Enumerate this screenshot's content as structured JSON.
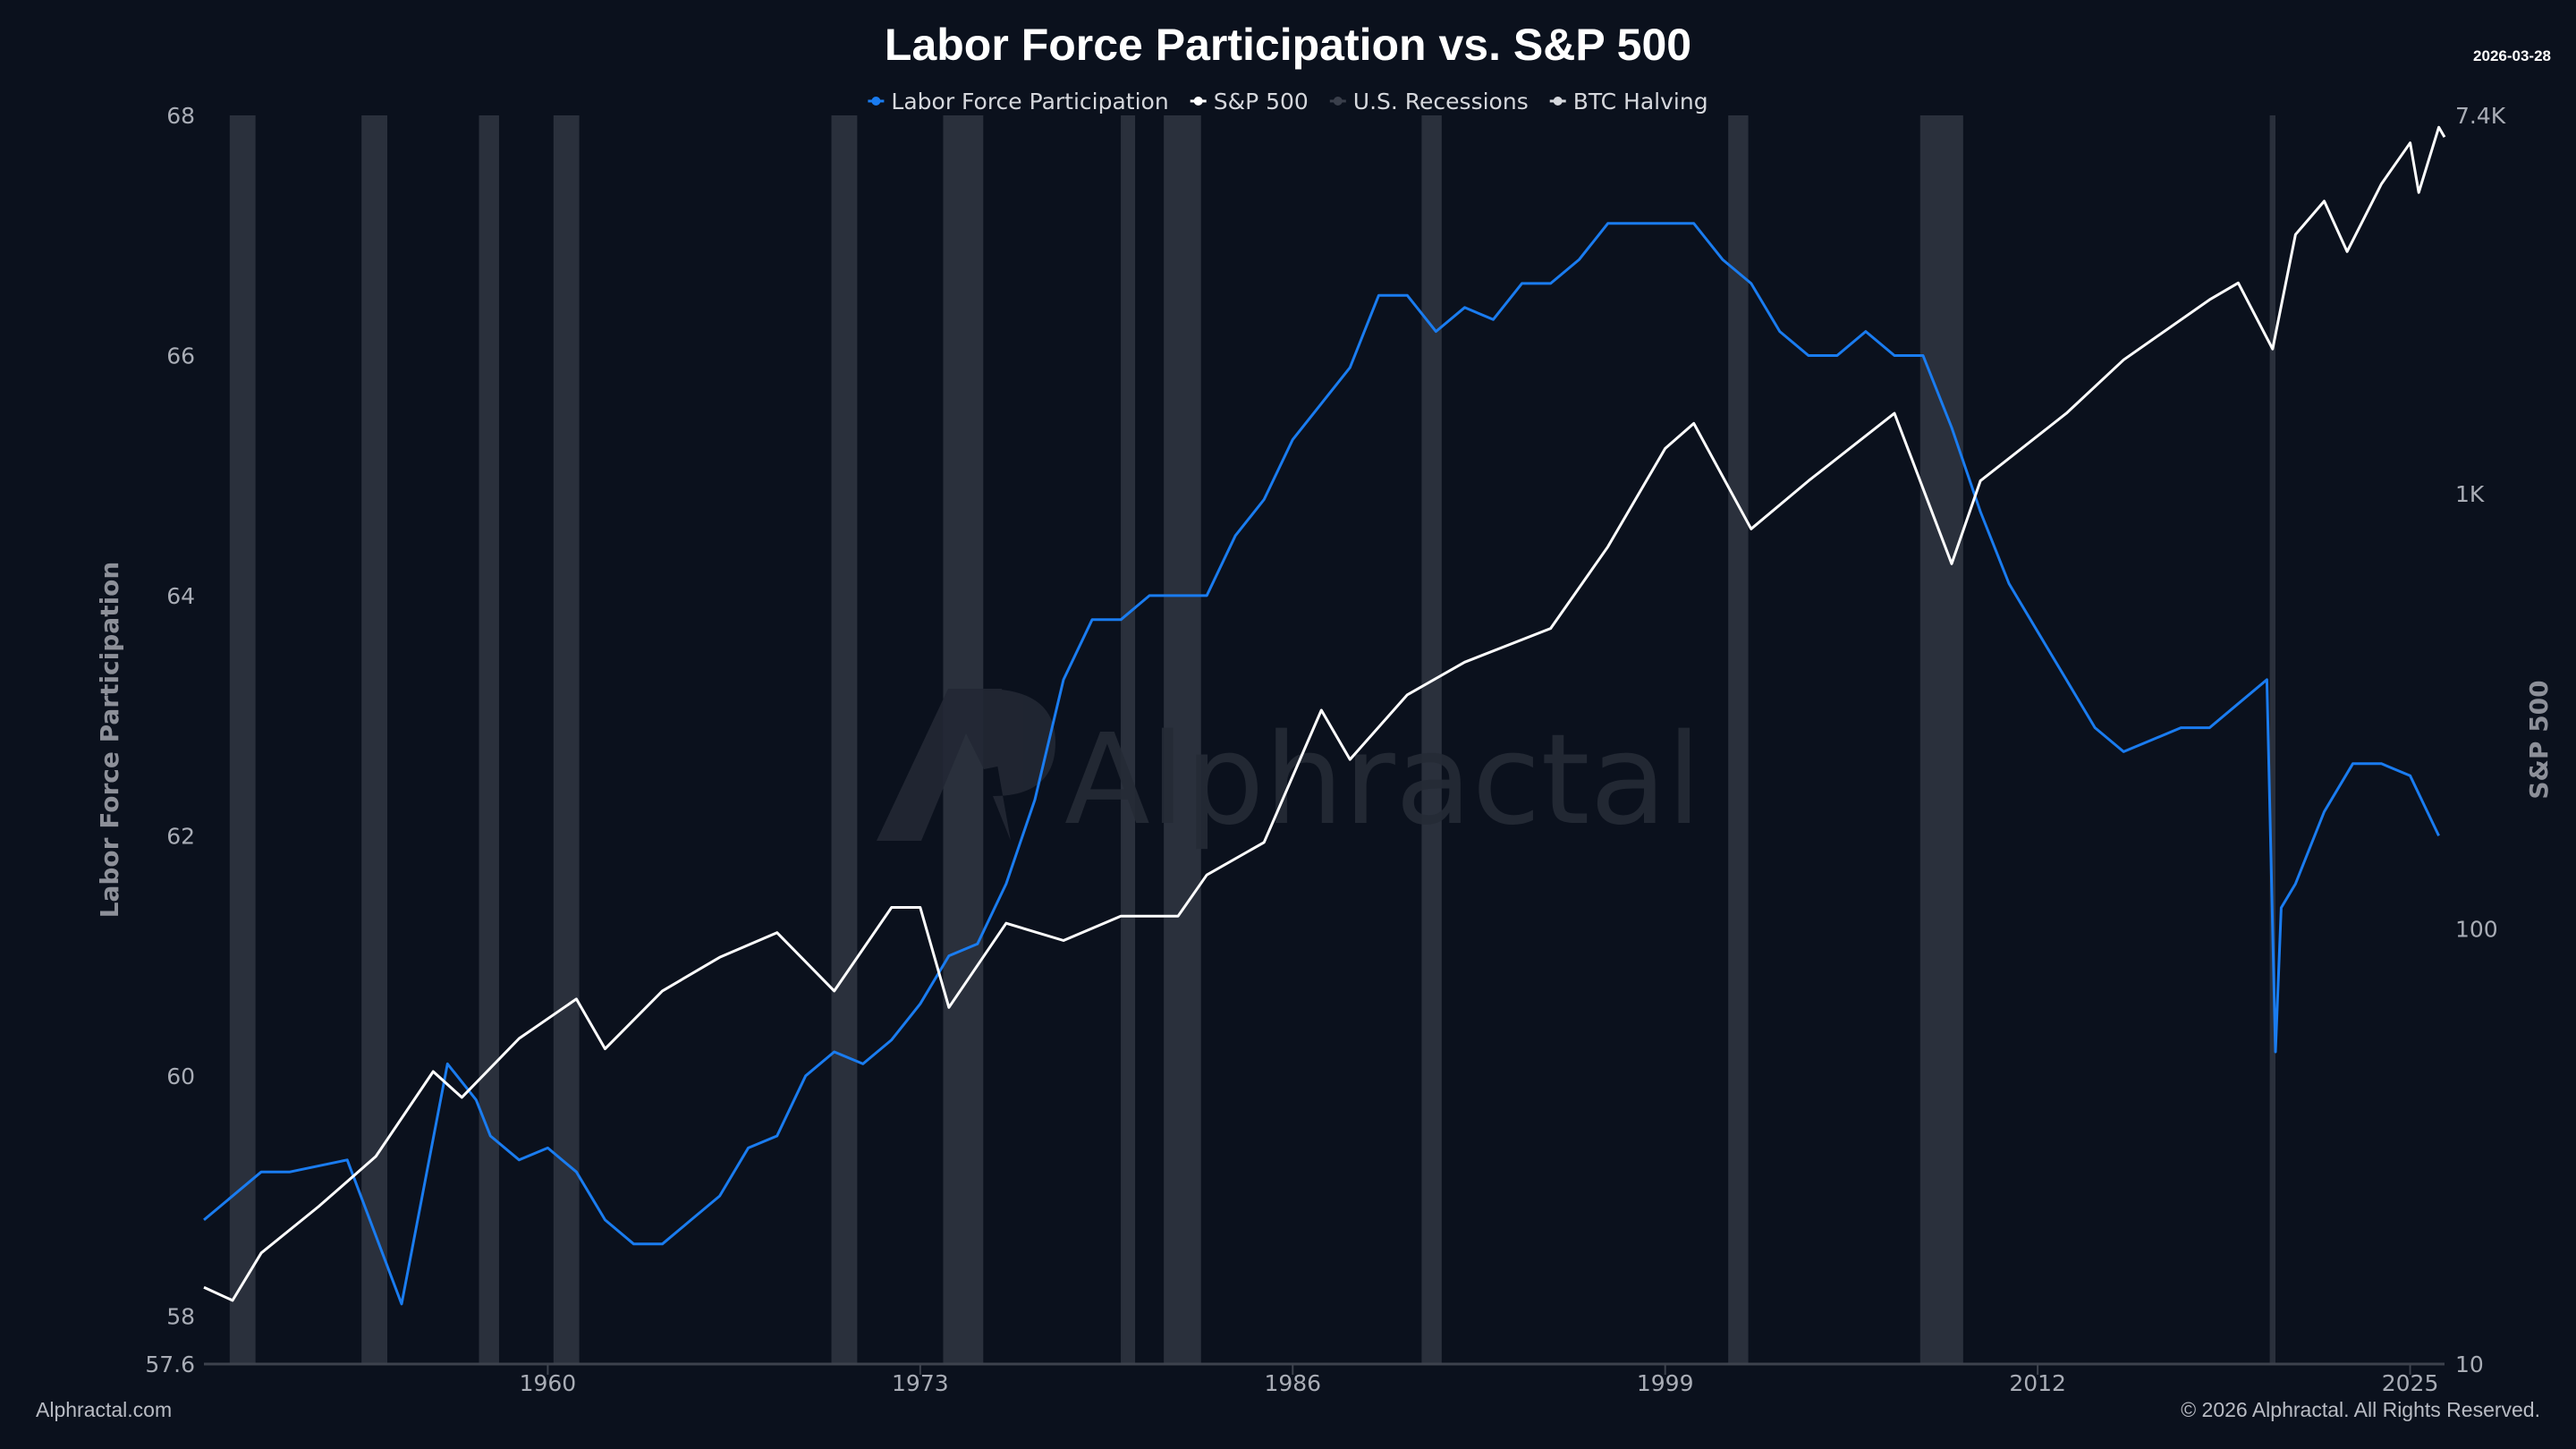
{
  "chart_data": {
    "type": "line",
    "title": "Labor Force Participation vs. S&P 500",
    "date_stamp": "2026-03-28",
    "watermark": "Alphractal",
    "footer_left": "Alphractal.com",
    "footer_right": "© 2026 Alphractal. All Rights Reserved.",
    "legend_position": "top-center",
    "legend": [
      {
        "name": "Labor Force Participation",
        "color": "#1a7cf0"
      },
      {
        "name": "S&P 500",
        "color": "#ffffff"
      },
      {
        "name": "U.S. Recessions",
        "color": "#3a3f4b"
      },
      {
        "name": "BTC Halving",
        "color": "#d6d8dd"
      }
    ],
    "xlim": [
      1948,
      2026.2
    ],
    "x_ticks": [
      "1960",
      "1973",
      "1986",
      "1999",
      "2012",
      "2025"
    ],
    "x_tick_values": [
      1960,
      1973,
      1986,
      1999,
      2012,
      2025
    ],
    "y_left": {
      "label": "Labor Force Participation",
      "lim": [
        57.6,
        68
      ],
      "ticks": [
        "57.6",
        "58",
        "60",
        "62",
        "64",
        "66",
        "68"
      ],
      "tick_values": [
        57.6,
        58,
        60,
        62,
        64,
        66,
        68
      ]
    },
    "y_right": {
      "label": "S&P 500",
      "scale": "log",
      "lim": [
        10,
        7400
      ],
      "ticks": [
        "10",
        "100",
        "1K",
        "7.4K"
      ],
      "tick_values": [
        10,
        100,
        1000,
        7400
      ]
    },
    "recessions": [
      [
        1948.9,
        1949.8
      ],
      [
        1953.5,
        1954.4
      ],
      [
        1957.6,
        1958.3
      ],
      [
        1960.2,
        1961.1
      ],
      [
        1969.9,
        1970.8
      ],
      [
        1973.8,
        1975.2
      ],
      [
        1980.0,
        1980.5
      ],
      [
        1981.5,
        1982.8
      ],
      [
        1990.5,
        1991.2
      ],
      [
        2001.2,
        2001.9
      ],
      [
        2007.9,
        2009.4
      ],
      [
        2020.1,
        2020.3
      ]
    ],
    "series": [
      {
        "name": "Labor Force Participation",
        "axis": "left",
        "color": "#1a7cf0",
        "x": [
          1948,
          1950,
          1951,
          1953,
          1954.9,
          1956.5,
          1957.5,
          1958,
          1959,
          1960,
          1961,
          1962,
          1963,
          1964,
          1965,
          1966,
          1967,
          1968,
          1969,
          1970,
          1971,
          1972,
          1973,
          1974,
          1975,
          1976,
          1977,
          1978,
          1979,
          1980,
          1981,
          1982,
          1983,
          1984,
          1985,
          1986,
          1987,
          1988,
          1989,
          1990,
          1991,
          1992,
          1993,
          1994,
          1995,
          1996,
          1997,
          1998,
          1999,
          2000,
          2001,
          2002,
          2003,
          2004,
          2005,
          2006,
          2007,
          2008,
          2009,
          2010,
          2011,
          2012,
          2013,
          2014,
          2015,
          2016,
          2017,
          2018,
          2019,
          2020.0,
          2020.3,
          2020.5,
          2021,
          2022,
          2023,
          2024,
          2025,
          2026
        ],
        "values": [
          58.8,
          59.2,
          59.2,
          59.3,
          58.1,
          60.1,
          59.8,
          59.5,
          59.3,
          59.4,
          59.2,
          58.8,
          58.6,
          58.6,
          58.8,
          59.0,
          59.4,
          59.5,
          60.0,
          60.2,
          60.1,
          60.3,
          60.6,
          61.0,
          61.1,
          61.6,
          62.3,
          63.3,
          63.8,
          63.8,
          64.0,
          64.0,
          64.0,
          64.5,
          64.8,
          65.3,
          65.6,
          65.9,
          66.5,
          66.5,
          66.2,
          66.4,
          66.3,
          66.6,
          66.6,
          66.8,
          67.1,
          67.1,
          67.1,
          67.1,
          66.8,
          66.6,
          66.2,
          66.0,
          66.0,
          66.2,
          66.0,
          66.0,
          65.4,
          64.7,
          64.1,
          63.7,
          63.3,
          62.9,
          62.7,
          62.8,
          62.9,
          62.9,
          63.1,
          63.3,
          60.2,
          61.4,
          61.6,
          62.2,
          62.6,
          62.6,
          62.5,
          62.0
        ]
      },
      {
        "name": "S&P 500",
        "axis": "right",
        "color": "#ffffff",
        "x": [
          1948,
          1949,
          1950,
          1952,
          1954,
          1956,
          1957,
          1959,
          1961,
          1962,
          1964,
          1966,
          1968,
          1970,
          1972,
          1973,
          1974,
          1976,
          1978,
          1980,
          1982,
          1983,
          1985,
          1987,
          1988,
          1990,
          1992,
          1995,
          1997,
          1999,
          2000,
          2002,
          2004,
          2007,
          2009,
          2010,
          2013,
          2015,
          2018,
          2019,
          2020.2,
          2021,
          2022,
          2022.8,
          2024,
          2025,
          2025.3,
          2026,
          2026.2
        ],
        "values": [
          15,
          14,
          18,
          23,
          30,
          47,
          41,
          56,
          69,
          53,
          72,
          86,
          98,
          72,
          112,
          112,
          66,
          103,
          94,
          107,
          107,
          133,
          158,
          318,
          245,
          345,
          410,
          490,
          755,
          1270,
          1450,
          830,
          1070,
          1530,
          690,
          1070,
          1530,
          2030,
          2790,
          3050,
          2150,
          3940,
          4700,
          3600,
          5150,
          6400,
          4920,
          6950,
          6600
        ]
      }
    ]
  }
}
